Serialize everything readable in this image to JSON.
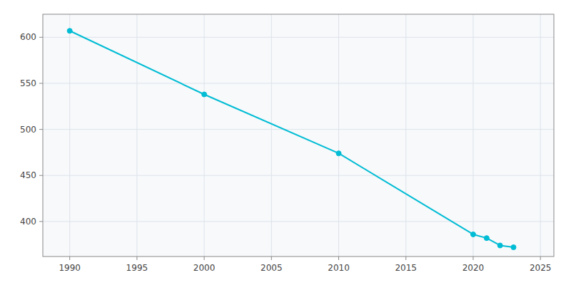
{
  "chart_data": {
    "type": "line",
    "x": [
      1990,
      2000,
      2010,
      2020,
      2021,
      2022,
      2023
    ],
    "values": [
      607,
      538,
      474,
      386,
      382,
      374,
      372
    ],
    "color": "#00BCD4",
    "marker": "circle",
    "xlim": [
      1988,
      2026
    ],
    "ylim": [
      362,
      625
    ],
    "xticks": [
      1990,
      1995,
      2000,
      2005,
      2010,
      2015,
      2020,
      2025
    ],
    "yticks": [
      400,
      450,
      500,
      550,
      600
    ],
    "grid": true
  }
}
